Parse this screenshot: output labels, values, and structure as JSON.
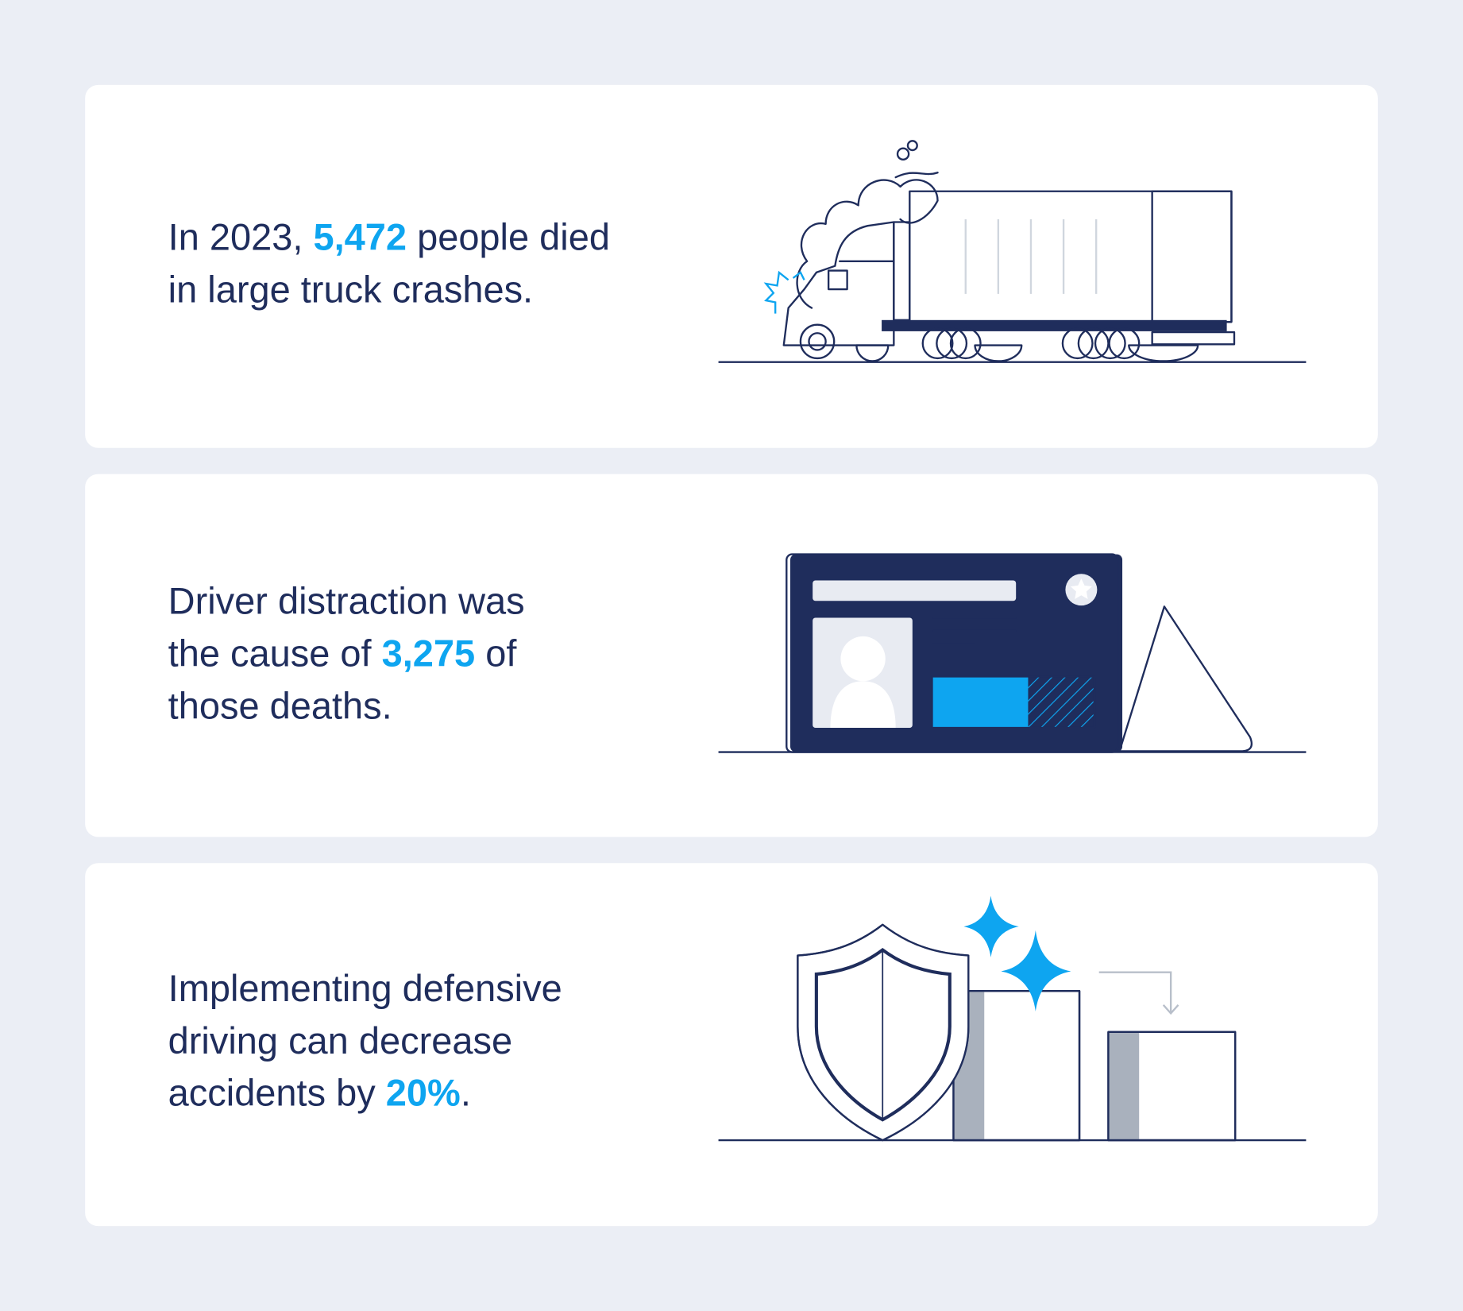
{
  "cards": [
    {
      "lines": [
        [
          {
            "text": "In 2023, "
          },
          {
            "text": "5,472",
            "highlight": true
          },
          {
            "text": " people died"
          }
        ],
        [
          {
            "text": "in large truck crashes."
          }
        ]
      ]
    },
    {
      "lines": [
        [
          {
            "text": "Driver distraction was"
          }
        ],
        [
          {
            "text": "the cause of "
          },
          {
            "text": "3,275",
            "highlight": true
          },
          {
            "text": " of"
          }
        ],
        [
          {
            "text": "those deaths."
          }
        ]
      ]
    },
    {
      "lines": [
        [
          {
            "text": "Implementing defensive"
          }
        ],
        [
          {
            "text": "driving can decrease"
          }
        ],
        [
          {
            "text": "accidents by "
          },
          {
            "text": "20%",
            "highlight": true
          },
          {
            "text": "."
          }
        ]
      ]
    }
  ]
}
